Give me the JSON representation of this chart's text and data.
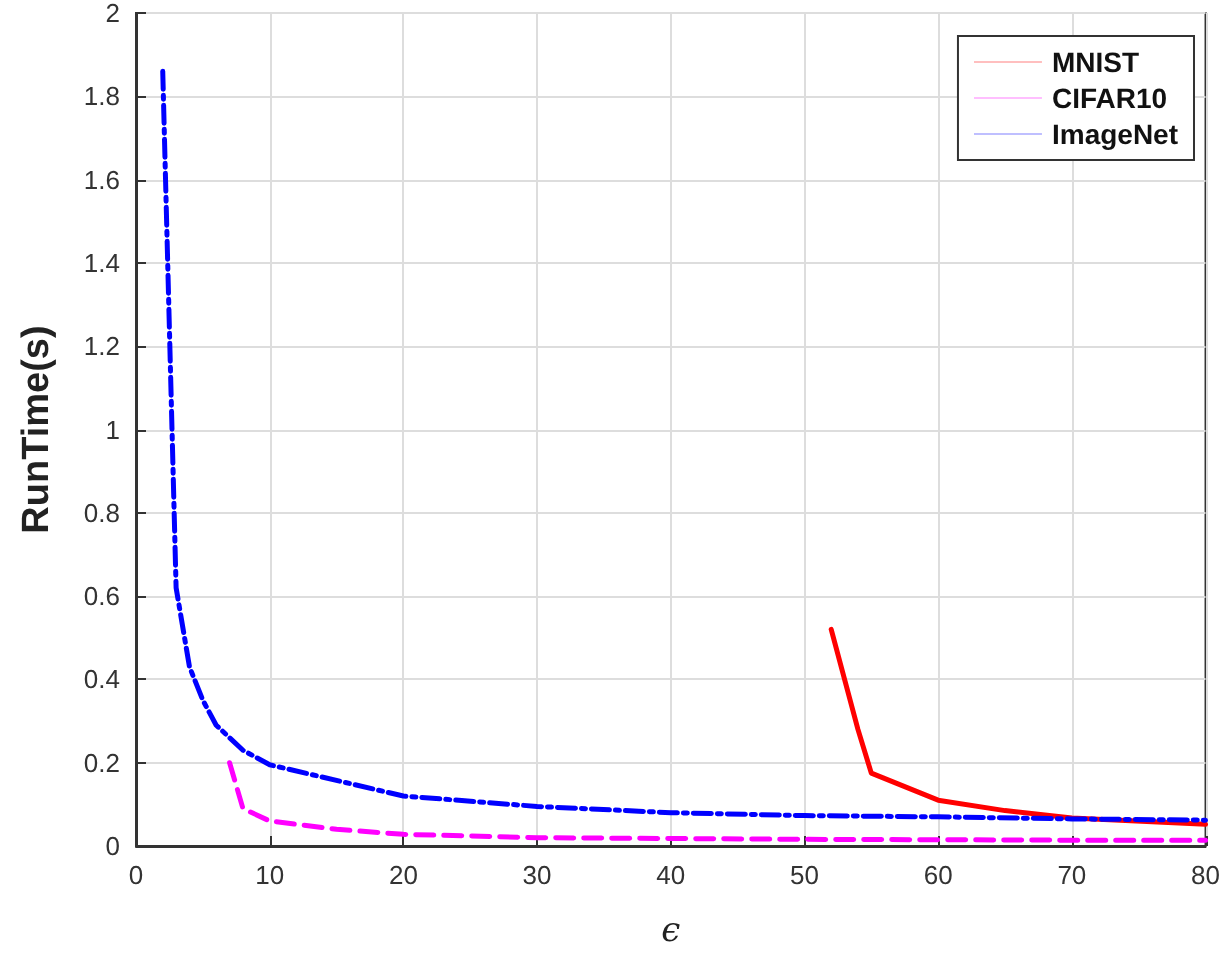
{
  "chart_data": {
    "type": "line",
    "xlabel": "ϵ",
    "ylabel": "RunTime(s)",
    "xlim": [
      0,
      80
    ],
    "xticks": [
      0,
      10,
      20,
      30,
      40,
      50,
      60,
      70,
      80
    ],
    "ylim": [
      0,
      2
    ],
    "yticks": [
      0,
      0.2,
      0.4,
      0.6,
      0.8,
      1,
      1.2,
      1.4,
      1.6,
      1.8,
      2
    ],
    "grid": true,
    "legend": "top right",
    "marker": "none",
    "series": [
      {
        "name": "MNIST",
        "color": "#ff0000",
        "line_style": "solid",
        "x": [
          52,
          54,
          55,
          60,
          65,
          70,
          80
        ],
        "values": [
          0.52,
          0.28,
          0.175,
          0.11,
          0.085,
          0.067,
          0.052
        ]
      },
      {
        "name": "CIFAR10",
        "color": "#ff00ff",
        "line_style": "dashed",
        "x": [
          7,
          8,
          10,
          15,
          20,
          30,
          40,
          50,
          60,
          70,
          80
        ],
        "values": [
          0.2,
          0.09,
          0.06,
          0.04,
          0.028,
          0.02,
          0.018,
          0.016,
          0.015,
          0.014,
          0.014
        ]
      },
      {
        "name": "ImageNet",
        "color": "#0000ff",
        "line_style": "dashdot",
        "x": [
          2,
          3,
          4,
          5,
          6,
          8,
          10,
          20,
          30,
          40,
          50,
          60,
          70,
          80
        ],
        "values": [
          1.86,
          0.62,
          0.43,
          0.35,
          0.29,
          0.23,
          0.195,
          0.12,
          0.095,
          0.08,
          0.073,
          0.07,
          0.065,
          0.062
        ]
      }
    ]
  }
}
